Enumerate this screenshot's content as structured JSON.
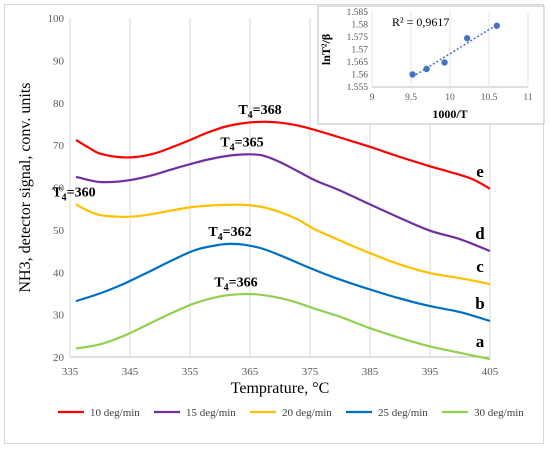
{
  "chart_data": [
    {
      "type": "line",
      "title": "",
      "xlabel": "Temprature, °C",
      "ylabel": "NH3, detector signal, conv. units",
      "xlim": [
        335,
        405
      ],
      "ylim": [
        20,
        100
      ],
      "x_ticks": [
        "335",
        "345",
        "355",
        "365",
        "375",
        "385",
        "395",
        "405"
      ],
      "y_ticks": [
        "20",
        "30",
        "40",
        "50",
        "60",
        "70",
        "80",
        "90",
        "100"
      ],
      "grid": "vertical gridlines",
      "legend_position": "bottom",
      "series": [
        {
          "name": "10 deg/min",
          "color": "#ff0000",
          "curve_label": "e",
          "peak_label": "T4=368",
          "x": [
            336,
            338,
            340,
            343,
            346,
            349,
            352,
            355,
            358,
            361,
            364,
            367,
            370,
            373,
            376,
            380,
            385,
            390,
            395,
            398,
            402,
            405
          ],
          "y": [
            71.2,
            69.5,
            68.0,
            67.2,
            67.2,
            68.0,
            69.5,
            71.2,
            73.0,
            74.4,
            75.2,
            75.5,
            75.3,
            74.6,
            73.5,
            71.8,
            69.6,
            67.2,
            65.0,
            63.8,
            62.0,
            59.7
          ]
        },
        {
          "name": "15 deg/min",
          "color": "#7030a0",
          "curve_label": "d",
          "peak_label": "T4=365",
          "x": [
            336,
            338,
            340,
            343,
            346,
            349,
            352,
            355,
            358,
            361,
            364,
            367,
            370,
            373,
            376,
            380,
            385,
            390,
            395,
            400,
            405
          ],
          "y": [
            62.5,
            61.8,
            61.3,
            61.4,
            62.0,
            63.0,
            64.3,
            65.5,
            66.6,
            67.4,
            67.8,
            67.6,
            66.0,
            63.8,
            61.6,
            59.3,
            56.0,
            52.8,
            49.8,
            47.8,
            45.0
          ]
        },
        {
          "name": "20 deg/min",
          "color": "#ffc000",
          "curve_label": "c",
          "peak_label": "T4=360",
          "x": [
            336,
            338,
            340,
            343,
            346,
            349,
            352,
            355,
            358,
            361,
            364,
            367,
            370,
            373,
            376,
            380,
            385,
            390,
            395,
            400,
            405
          ],
          "y": [
            56.0,
            54.5,
            53.5,
            53.1,
            53.2,
            53.8,
            54.6,
            55.3,
            55.7,
            55.9,
            55.9,
            55.4,
            54.2,
            52.4,
            50.0,
            47.5,
            44.5,
            41.8,
            39.8,
            38.6,
            37.2
          ]
        },
        {
          "name": "25 deg/min",
          "color": "#0070c0",
          "curve_label": "b",
          "peak_label": "T4=362",
          "x": [
            336,
            340,
            344,
            348,
            352,
            356,
            360,
            362,
            364,
            367,
            370,
            374,
            378,
            382,
            386,
            390,
            395,
            400,
            405
          ],
          "y": [
            33.2,
            35.0,
            37.3,
            40.0,
            42.8,
            45.3,
            46.5,
            46.7,
            46.5,
            45.6,
            44.0,
            41.6,
            39.3,
            37.3,
            35.5,
            33.8,
            32.0,
            30.6,
            28.5
          ]
        },
        {
          "name": "30 deg/min",
          "color": "#92d050",
          "curve_label": "a",
          "peak_label": "T4=366",
          "x": [
            336,
            340,
            344,
            348,
            352,
            356,
            360,
            363,
            366,
            369,
            372,
            376,
            380,
            385,
            390,
            395,
            400,
            405
          ],
          "y": [
            22.0,
            23.0,
            25.0,
            27.7,
            30.4,
            32.8,
            34.3,
            34.8,
            34.8,
            34.2,
            33.2,
            31.3,
            29.5,
            26.8,
            24.5,
            22.5,
            21.0,
            19.5
          ]
        }
      ]
    },
    {
      "type": "scatter",
      "title": "",
      "xlabel": "1000/T",
      "ylabel": "lnT²/β",
      "xlim": [
        9,
        11
      ],
      "ylim": [
        1.555,
        1.585
      ],
      "x_ticks": [
        "9",
        "9.5",
        "10",
        "10.5",
        "11"
      ],
      "y_ticks": [
        "1.555",
        "1.56",
        "1.565",
        "1.57",
        "1.575",
        "1.58",
        "1.585"
      ],
      "annotation": "R² = 0,9617",
      "point_color": "#4472c4",
      "trendline": "dotted linear",
      "points": [
        {
          "x": 9.52,
          "y": 1.56
        },
        {
          "x": 9.7,
          "y": 1.5622
        },
        {
          "x": 9.93,
          "y": 1.5648
        },
        {
          "x": 10.22,
          "y": 1.5745
        },
        {
          "x": 10.6,
          "y": 1.5795
        }
      ]
    }
  ]
}
